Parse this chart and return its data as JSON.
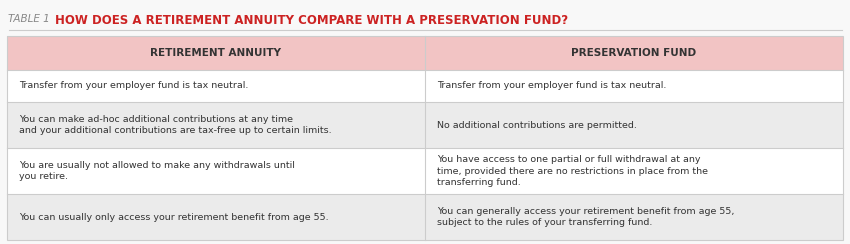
{
  "title_label": "TABLE 1",
  "title_text": "HOW DOES A RETIREMENT ANNUITY COMPARE WITH A PRESERVATION FUND?",
  "col1_header": "RETIREMENT ANNUITY",
  "col2_header": "PRESERVATION FUND",
  "rows": [
    {
      "left": "Transfer from your employer fund is tax neutral.",
      "right": "Transfer from your employer fund is tax neutral."
    },
    {
      "left": "You can make ad-hoc additional contributions at any time\nand your additional contributions are tax-free up to certain limits.",
      "right": "No additional contributions are permitted."
    },
    {
      "left": "You are usually not allowed to make any withdrawals until\nyou retire.",
      "right": "You have access to one partial or full withdrawal at any\ntime, provided there are no restrictions in place from the\ntransferring fund."
    },
    {
      "left": "You can usually only access your retirement benefit from age 55.",
      "right": "You can generally access your retirement benefit from age 55,\nsubject to the rules of your transferring fund."
    }
  ],
  "bg_color": "#f5f5f5",
  "header_bg": "#f2c4c4",
  "title_color": "#cc2222",
  "table_label_color": "#888888",
  "header_text_color": "#333333",
  "row_text_color": "#333333",
  "divider_color": "#cccccc",
  "outer_bg": "#f8f8f8"
}
